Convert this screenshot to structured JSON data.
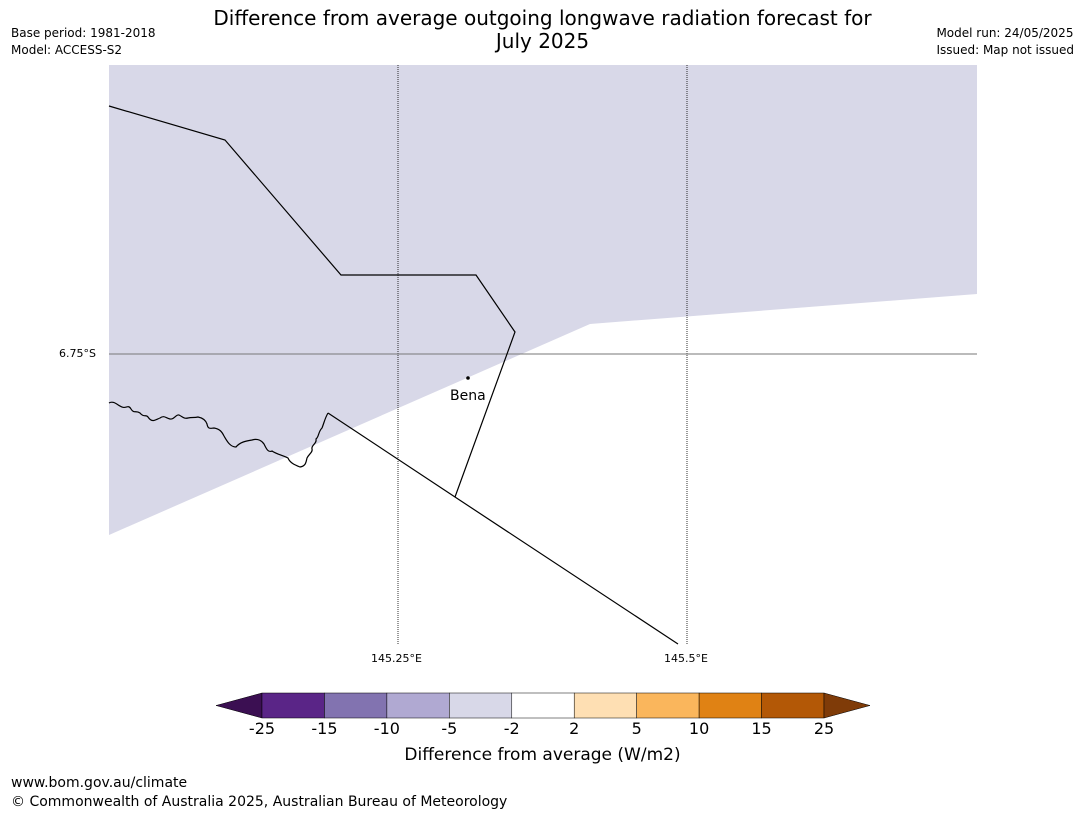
{
  "title_line1": "Difference from average outgoing longwave radiation forecast for",
  "title_line2": "July 2025",
  "meta_left": {
    "base_period": "Base period: 1981-2018",
    "model": "Model: ACCESS-S2"
  },
  "meta_right": {
    "model_run": "Model run: 24/05/2025",
    "issued": "Issued: Map not issued"
  },
  "map": {
    "lat_label": "6.75°S",
    "lon_labels": [
      "145.25°E",
      "145.5°E"
    ],
    "place": {
      "name": "Bena"
    },
    "shading_color": "#d8d8e8",
    "background_color": "#ffffff"
  },
  "colorbar": {
    "ticks": [
      "-25",
      "-15",
      "-10",
      "-5",
      "-2",
      "2",
      "5",
      "10",
      "15",
      "25"
    ],
    "colors": [
      "#3b0f52",
      "#5a2587",
      "#8273b0",
      "#b0a9d2",
      "#d8d8e8",
      "#ffffff",
      "#fedfb3",
      "#fab65c",
      "#e08214",
      "#b35806",
      "#7f3b08"
    ],
    "label": "Difference from average (W/m2)"
  },
  "footer": {
    "url": "www.bom.gov.au/climate",
    "copyright": "© Commonwealth of Australia 2025, Australian Bureau of Meteorology"
  }
}
